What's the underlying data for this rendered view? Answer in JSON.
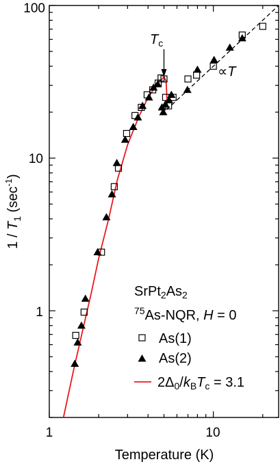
{
  "chart_data": {
    "type": "scatter",
    "x_scale": "log",
    "y_scale": "log",
    "xlim": [
      1,
      25
    ],
    "ylim": [
      0.2,
      100
    ],
    "grid": false,
    "xlabel": "Temperature (K)",
    "ylabel_parts": {
      "a": "1 / ",
      "b": "T",
      "c": "1",
      "d": " (sec",
      "e": "-1",
      "f": ")"
    },
    "x_ticks": [
      {
        "value": 1,
        "label": "1"
      },
      {
        "value": 10,
        "label": "10"
      }
    ],
    "y_ticks": [
      {
        "value": 1,
        "label": "1"
      },
      {
        "value": 10,
        "label": "10"
      },
      {
        "value": 100,
        "label": "100"
      }
    ],
    "legend": {
      "position": "bottom-right",
      "title_line1": {
        "a": "SrPt",
        "b": "2",
        "c": "As",
        "d": "2"
      },
      "title_line2": {
        "a": "75",
        "b": "As-NQR, ",
        "c": "H",
        "d": " = 0"
      },
      "entries": [
        {
          "marker": "open-square",
          "label": "As(1)"
        },
        {
          "marker": "filled-triangle",
          "label": "As(2)"
        },
        {
          "marker": "red-line",
          "label_parts": {
            "a": "2Δ",
            "b": "0",
            "c": "/",
            "d": "k",
            "e": "B",
            "f": "T",
            "g": "c",
            "h": " = 3.1"
          }
        }
      ]
    },
    "annotations": {
      "tc_label": {
        "a": "T",
        "b": "c"
      },
      "tc_arrow_x": 5.0,
      "prop_label": {
        "a": "∝",
        "b": "T"
      }
    },
    "series": [
      {
        "name": "As(1)",
        "marker": "open-square",
        "points": [
          [
            1.45,
            0.69
          ],
          [
            1.63,
            0.98
          ],
          [
            2.08,
            2.42
          ],
          [
            2.49,
            6.5
          ],
          [
            2.64,
            8.6
          ],
          [
            2.96,
            14.5
          ],
          [
            3.33,
            19.0
          ],
          [
            3.64,
            21.5
          ],
          [
            3.95,
            26.0
          ],
          [
            4.27,
            28.0
          ],
          [
            4.61,
            31.0
          ],
          [
            4.8,
            33.5
          ],
          [
            5.0,
            33.0
          ],
          [
            5.12,
            25.0
          ],
          [
            5.33,
            22.0
          ],
          [
            5.68,
            25.0
          ],
          [
            7.0,
            33.0
          ],
          [
            7.9,
            35.0
          ],
          [
            10.0,
            40.0
          ],
          [
            15.0,
            64.0
          ],
          [
            20.0,
            73.0
          ]
        ]
      },
      {
        "name": "As(2)",
        "marker": "filled-triangle",
        "points": [
          [
            1.43,
            0.45
          ],
          [
            1.49,
            0.62
          ],
          [
            1.57,
            0.8
          ],
          [
            1.66,
            1.2
          ],
          [
            1.97,
            2.42
          ],
          [
            2.23,
            4.1
          ],
          [
            2.41,
            5.8
          ],
          [
            2.58,
            9.3
          ],
          [
            2.9,
            13.2
          ],
          [
            3.25,
            16.0
          ],
          [
            3.47,
            18.5
          ],
          [
            3.7,
            22.0
          ],
          [
            4.05,
            25.0
          ],
          [
            4.32,
            29.0
          ],
          [
            4.58,
            30.5
          ],
          [
            4.86,
            21.5
          ],
          [
            4.95,
            20.0
          ],
          [
            5.1,
            22.5
          ],
          [
            5.37,
            24.0
          ],
          [
            5.55,
            26.0
          ],
          [
            6.95,
            28.0
          ],
          [
            8.0,
            38.0
          ],
          [
            10.1,
            44.0
          ],
          [
            12.6,
            53.0
          ],
          [
            15.0,
            61.0
          ]
        ]
      },
      {
        "name": "2Δ0/kBTc = 3.1",
        "type": "line",
        "color": "#e8191e",
        "points": [
          [
            1.22,
            0.2
          ],
          [
            1.4,
            0.4
          ],
          [
            1.6,
            0.75
          ],
          [
            1.8,
            1.3
          ],
          [
            2.0,
            2.2
          ],
          [
            2.3,
            4.0
          ],
          [
            2.6,
            7.2
          ],
          [
            3.0,
            12.2
          ],
          [
            3.5,
            18.5
          ],
          [
            4.0,
            25.0
          ],
          [
            4.5,
            30.0
          ],
          [
            4.8,
            32.5
          ],
          [
            5.0,
            34.0
          ],
          [
            5.15,
            32.0
          ],
          [
            5.25,
            21.0
          ]
        ]
      },
      {
        "name": "∝T",
        "type": "line",
        "style": "dashed",
        "color": "#000000",
        "points": [
          [
            5.2,
            20.8
          ],
          [
            25.0,
            100.0
          ]
        ]
      }
    ]
  }
}
